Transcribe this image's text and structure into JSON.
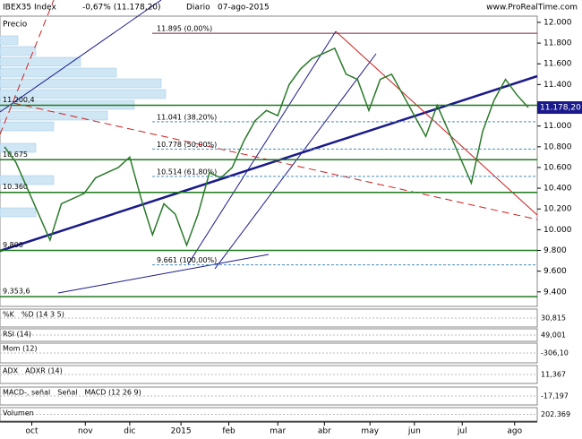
{
  "header": {
    "symbol": "IBEX35 Index",
    "change": "-0,67% (11.178,20)",
    "period": "Diario",
    "date": "07-ago-2015",
    "site": "www.ProRealTime.com",
    "panel": "Precio"
  },
  "chart_data": {
    "type": "line",
    "series": [
      {
        "name": "IBEX35 Index",
        "color": "#2a7a2a",
        "values": [
          10800,
          10650,
          10400,
          10150,
          9900,
          10250,
          10300,
          10350,
          10500,
          10550,
          10600,
          10700,
          10300,
          9950,
          10250,
          10150,
          9850,
          10150,
          10550,
          10500,
          10600,
          10850,
          11050,
          11150,
          11100,
          11400,
          11550,
          11650,
          11700,
          11750,
          11500,
          11450,
          11150,
          11450,
          11500,
          11300,
          11100,
          10900,
          11200,
          10950,
          10700,
          10450,
          10950,
          11250,
          11450,
          11300,
          11178
        ]
      }
    ],
    "xlim": [
      0,
      46
    ],
    "xticks": [
      {
        "value": 2.4,
        "label": "oct"
      },
      {
        "value": 7.1,
        "label": "nov"
      },
      {
        "value": 11,
        "label": "dic"
      },
      {
        "value": 15.5,
        "label": "2015"
      },
      {
        "value": 19.7,
        "label": "feb"
      },
      {
        "value": 24,
        "label": "mar"
      },
      {
        "value": 28.1,
        "label": "abr"
      },
      {
        "value": 32.1,
        "label": "may"
      },
      {
        "value": 36,
        "label": "jun"
      },
      {
        "value": 40.2,
        "label": "jul"
      },
      {
        "value": 44.8,
        "label": "ago"
      }
    ],
    "ylim": [
      9260,
      12060
    ],
    "yticks": [
      {
        "value": 9400,
        "label": "9.400"
      },
      {
        "value": 9600,
        "label": "9.600"
      },
      {
        "value": 9800,
        "label": "9.800"
      },
      {
        "value": 10000,
        "label": "10.000"
      },
      {
        "value": 10200,
        "label": "10.200"
      },
      {
        "value": 10400,
        "label": "10.400"
      },
      {
        "value": 10600,
        "label": "10.600"
      },
      {
        "value": 10800,
        "label": "10.800"
      },
      {
        "value": 11000,
        "label": "11.000"
      },
      {
        "value": 11200,
        "label": "11.200"
      },
      {
        "value": 11400,
        "label": "11.400"
      },
      {
        "value": 11600,
        "label": "11.600"
      },
      {
        "value": 11800,
        "label": "11.800"
      },
      {
        "value": 12000,
        "label": "12.000"
      }
    ],
    "fib_levels": [
      {
        "value": 11895,
        "label": "11.895 (0,00%)"
      },
      {
        "value": 11041,
        "label": "11.041 (38,20%)"
      },
      {
        "value": 10778,
        "label": "10.778 (50,00%)"
      },
      {
        "value": 10514,
        "label": "10.514 (61,80%)"
      },
      {
        "value": 9661,
        "label": "9.661 (100,00%)"
      }
    ],
    "levels": [
      {
        "value": 11200.4,
        "label": "11.200,4"
      },
      {
        "value": 10675,
        "label": "10.675"
      },
      {
        "value": 10360,
        "label": "10.360"
      },
      {
        "value": 9800,
        "label": "9.800"
      },
      {
        "value": 9353.6,
        "label": "9.353,6"
      }
    ],
    "last_price": {
      "value": 11178.2,
      "label": "11.178,20"
    }
  },
  "indicators": [
    {
      "labels": [
        "%K",
        "%D (14 3 5)"
      ],
      "last": "30,815"
    },
    {
      "labels": [
        "RSI (14)"
      ],
      "last": "49,001"
    },
    {
      "labels": [
        "Mom (12)"
      ],
      "last": "-306,10"
    },
    {
      "labels": [
        "ADX",
        "ADXR (14)"
      ],
      "last": "11,367"
    },
    {
      "labels": [
        "MACD-, señal",
        "Señal",
        "MACD (12 26 9)"
      ],
      "last": "-17,197"
    },
    {
      "labels": [
        "Volumen"
      ],
      "last": "202.369"
    }
  ]
}
